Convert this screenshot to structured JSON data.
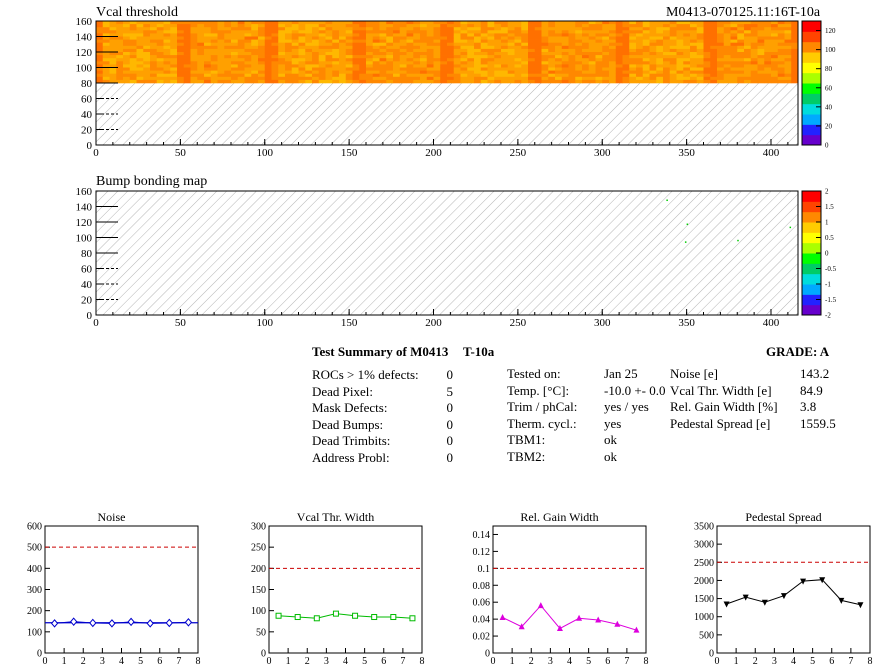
{
  "header": {
    "panel1_title": "Vcal threshold",
    "module_id": "M0413-070125.11:16T-10a",
    "panel2_title": "Bump bonding map"
  },
  "colors": {
    "palette": [
      "#6600cc",
      "#2222ff",
      "#00aaff",
      "#00dddd",
      "#00cc66",
      "#00ff00",
      "#aaff00",
      "#ffff00",
      "#ffcc00",
      "#ff8800",
      "#ff4400",
      "#ff0000"
    ]
  },
  "summary": {
    "title": "Test Summary of M0413",
    "temp_label": "T-10a",
    "grade": "GRADE:  A",
    "defects": [
      {
        "label": "ROCs > 1% defects:",
        "value": "0"
      },
      {
        "label": "Dead Pixel:",
        "value": "5"
      },
      {
        "label": "Mask Defects:",
        "value": "0"
      },
      {
        "label": "Dead Bumps:",
        "value": "0"
      },
      {
        "label": "Dead Trimbits:",
        "value": "0"
      },
      {
        "label": "Address Probl:",
        "value": "0"
      }
    ],
    "conditions": [
      {
        "label": "Tested on:",
        "value": "Jan 25"
      },
      {
        "label": "Temp. [°C]:",
        "value": "-10.0 +- 0.0"
      },
      {
        "label": "Trim / phCal:",
        "value": "yes / yes"
      },
      {
        "label": "Therm. cycl.:",
        "value": "yes"
      },
      {
        "label": "TBM1:",
        "value": "ok"
      },
      {
        "label": "TBM2:",
        "value": "ok"
      }
    ],
    "results": [
      {
        "label": "Noise [e]",
        "value": "143.2"
      },
      {
        "label": "Vcal Thr. Width [e]",
        "value": "84.9"
      },
      {
        "label": "Rel. Gain Width [%]",
        "value": "3.8"
      },
      {
        "label": "Pedestal Spread [e]",
        "value": "1559.5"
      }
    ]
  },
  "chart_data": [
    {
      "type": "heatmap",
      "title": "Vcal threshold",
      "xlim": [
        0,
        416
      ],
      "ylim": [
        0,
        160
      ],
      "xticks": [
        0,
        50,
        100,
        150,
        200,
        250,
        300,
        350,
        400
      ],
      "yticks": [
        0,
        20,
        40,
        60,
        80,
        100,
        120,
        140,
        160
      ],
      "filled_rows": [
        80,
        160
      ],
      "colorbar": {
        "range": [
          0,
          130
        ],
        "ticks": [
          "0",
          "20",
          "40",
          "60",
          "80",
          "100",
          "120"
        ]
      }
    },
    {
      "type": "heatmap",
      "title": "Bump bonding map",
      "xlim": [
        0,
        416
      ],
      "ylim": [
        0,
        160
      ],
      "xticks": [
        0,
        50,
        100,
        150,
        200,
        250,
        300,
        350,
        400
      ],
      "yticks": [
        0,
        20,
        40,
        60,
        80,
        100,
        120,
        140,
        160
      ],
      "points": [
        [
          338,
          149
        ],
        [
          350,
          118
        ],
        [
          349,
          95
        ],
        [
          380,
          97
        ],
        [
          411,
          114
        ]
      ],
      "colorbar": {
        "range": [
          -2,
          2
        ],
        "ticks": [
          "-2",
          "-1.5",
          "-1",
          "-0.5",
          "0",
          "0.5",
          "1",
          "1.5",
          "2"
        ]
      }
    },
    {
      "type": "line",
      "title": "Noise",
      "x": [
        0.5,
        1.5,
        2.5,
        3.5,
        4.5,
        5.5,
        6.5,
        7.5
      ],
      "values": [
        140,
        148,
        142,
        140,
        147,
        140,
        142,
        145
      ],
      "fit": 143,
      "limit": 500,
      "xlim": [
        0,
        8
      ],
      "ylim": [
        0,
        600
      ],
      "yticks": [
        "0",
        "100",
        "200",
        "300",
        "400",
        "500",
        "600"
      ],
      "xticks": [
        "0",
        "1",
        "2",
        "3",
        "4",
        "5",
        "6",
        "7",
        "8"
      ],
      "color": "#0000cc",
      "marker": "diamond"
    },
    {
      "type": "line",
      "title": "Vcal Thr. Width",
      "x": [
        0.5,
        1.5,
        2.5,
        3.5,
        4.5,
        5.5,
        6.5,
        7.5
      ],
      "values": [
        88,
        85,
        82,
        93,
        88,
        85,
        85,
        82
      ],
      "limit": 200,
      "xlim": [
        0,
        8
      ],
      "ylim": [
        0,
        300
      ],
      "yticks": [
        "0",
        "50",
        "100",
        "150",
        "200",
        "250",
        "300"
      ],
      "xticks": [
        "0",
        "1",
        "2",
        "3",
        "4",
        "5",
        "6",
        "7",
        "8"
      ],
      "color": "#00bb00",
      "marker": "square"
    },
    {
      "type": "line",
      "title": "Rel. Gain Width",
      "x": [
        0.5,
        1.5,
        2.5,
        3.5,
        4.5,
        5.5,
        6.5,
        7.5
      ],
      "values": [
        0.042,
        0.031,
        0.056,
        0.029,
        0.041,
        0.039,
        0.034,
        0.027
      ],
      "limit": 0.1,
      "xlim": [
        0,
        8
      ],
      "ylim": [
        0,
        0.15
      ],
      "yticks": [
        "0",
        "0.02",
        "0.04",
        "0.06",
        "0.08",
        "0.1",
        "0.12",
        "0.14"
      ],
      "xticks": [
        "0",
        "1",
        "2",
        "3",
        "4",
        "5",
        "6",
        "7",
        "8"
      ],
      "color": "#dd00dd",
      "marker": "triangle-up"
    },
    {
      "type": "line",
      "title": "Pedestal Spread",
      "x": [
        0.5,
        1.5,
        2.5,
        3.5,
        4.5,
        5.5,
        6.5,
        7.5
      ],
      "values": [
        1350,
        1540,
        1400,
        1580,
        1980,
        2020,
        1450,
        1330
      ],
      "limit": 2500,
      "xlim": [
        0,
        8
      ],
      "ylim": [
        0,
        3500
      ],
      "yticks": [
        "0",
        "500",
        "1000",
        "1500",
        "2000",
        "2500",
        "3000",
        "3500"
      ],
      "xticks": [
        "0",
        "1",
        "2",
        "3",
        "4",
        "5",
        "6",
        "7",
        "8"
      ],
      "color": "#000000",
      "marker": "triangle-down"
    }
  ]
}
